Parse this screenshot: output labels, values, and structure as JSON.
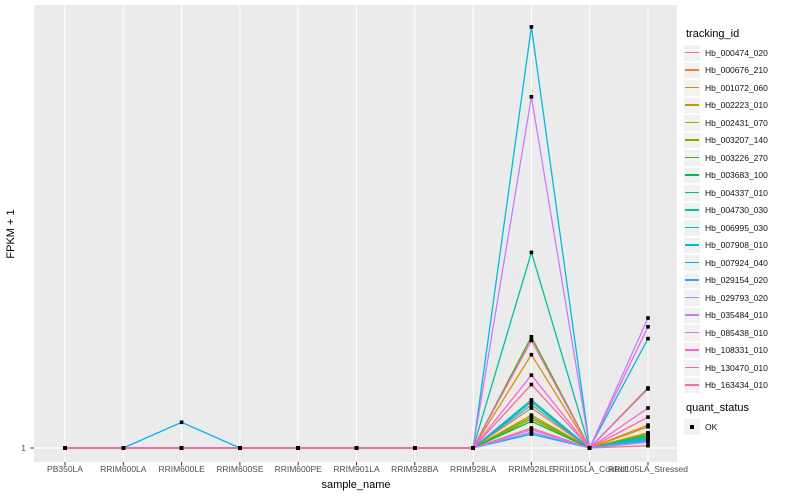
{
  "chart_data": {
    "type": "line",
    "title": "",
    "xlabel": "sample_name",
    "ylabel": "FPKM + 1",
    "categories": [
      "PB350LA",
      "RRIM600LA",
      "RRIM600LE",
      "RRIM600SE",
      "RRIM600PE",
      "RRIM901LA",
      "RRIM928BA",
      "RRIM928LA",
      "RRIM928LE",
      "RRII105LA_Control",
      "RRII105LA_Stressed"
    ],
    "y_axis": {
      "scale": "log10",
      "tick_labels": [
        "1"
      ],
      "tick_values": [
        1
      ],
      "approx_range": [
        1,
        334
      ]
    },
    "grid": {
      "vertical_major": true,
      "horizontal_major_at": [
        1
      ]
    },
    "legend": {
      "title": "tracking_id",
      "position": "right"
    },
    "legend2": {
      "title": "quant_status",
      "items": [
        {
          "label": "OK",
          "marker": "black-square"
        }
      ]
    },
    "series": [
      {
        "name": "Hb_000474_020",
        "color": "#F8766D",
        "values": [
          1,
          1,
          1,
          1,
          1,
          1,
          1,
          1,
          1.3,
          1,
          1.03
        ]
      },
      {
        "name": "Hb_000676_210",
        "color": "#EA8331",
        "values": [
          1,
          1,
          1,
          1,
          1,
          1,
          1,
          1,
          1.69,
          1,
          1.32
        ]
      },
      {
        "name": "Hb_001072_060",
        "color": "#D89000",
        "values": [
          1,
          1,
          1,
          1,
          1,
          1,
          1,
          1,
          3.4,
          1,
          1.35
        ]
      },
      {
        "name": "Hb_002223_010",
        "color": "#C09B00",
        "values": [
          1,
          1,
          1,
          1,
          1,
          1,
          1,
          1,
          1.54,
          1,
          1.19
        ]
      },
      {
        "name": "Hb_002431_070",
        "color": "#A3A500",
        "values": [
          1,
          1,
          1,
          1,
          1,
          1,
          1,
          1,
          1.46,
          1,
          1.22
        ]
      },
      {
        "name": "Hb_003207_140",
        "color": "#7CAE00",
        "values": [
          1,
          1,
          1,
          1,
          1,
          1,
          1,
          1,
          1.5,
          1,
          1.2
        ]
      },
      {
        "name": "Hb_003226_270",
        "color": "#39B600",
        "values": [
          1,
          1,
          1,
          1,
          1,
          1,
          1,
          1,
          4.3,
          1,
          2.2
        ]
      },
      {
        "name": "Hb_003683_100",
        "color": "#00BB4E",
        "values": [
          1,
          1,
          1,
          1,
          1,
          1,
          1,
          1,
          1.42,
          1,
          1.17
        ]
      },
      {
        "name": "Hb_004337_010",
        "color": "#00BF7D",
        "values": [
          1,
          1,
          1,
          1,
          1,
          1,
          1,
          1,
          1.83,
          1,
          1.14
        ]
      },
      {
        "name": "Hb_004730_030",
        "color": "#00C1A3",
        "values": [
          1,
          1,
          1,
          1,
          1,
          1,
          1,
          1,
          13.0,
          1,
          1.13
        ]
      },
      {
        "name": "Hb_006995_030",
        "color": "#00BFC4",
        "values": [
          1,
          1,
          1,
          1,
          1,
          1,
          1,
          1,
          1.88,
          1,
          1.16
        ]
      },
      {
        "name": "Hb_007908_010",
        "color": "#00BAE0",
        "values": [
          1,
          1,
          1,
          1,
          1,
          1,
          1,
          1,
          250,
          1,
          4.2
        ]
      },
      {
        "name": "Hb_007924_040",
        "color": "#00B0F6",
        "values": [
          1,
          1,
          1.4,
          1,
          1,
          1,
          1,
          1,
          1.2,
          1,
          1.1
        ]
      },
      {
        "name": "Hb_029154_020",
        "color": "#35A2FF",
        "values": [
          1,
          1,
          1,
          1,
          1,
          1,
          1,
          1,
          1.76,
          1,
          1.11
        ]
      },
      {
        "name": "Hb_029793_020",
        "color": "#9590FF",
        "values": [
          1,
          1,
          1,
          1,
          1,
          1,
          1,
          1,
          1.23,
          1,
          1.08
        ]
      },
      {
        "name": "Hb_035484_010",
        "color": "#C77CFF",
        "values": [
          1,
          1,
          1,
          1,
          1,
          1,
          1,
          1,
          100,
          1,
          5.5
        ]
      },
      {
        "name": "Hb_085438_010",
        "color": "#E76BF3",
        "values": [
          1,
          1,
          1,
          1,
          1,
          1,
          1,
          1,
          1.27,
          1,
          4.9
        ]
      },
      {
        "name": "Hb_108331_010",
        "color": "#FA62DB",
        "values": [
          1,
          1,
          1,
          1,
          1,
          1,
          1,
          1,
          2.6,
          1,
          1.69
        ]
      },
      {
        "name": "Hb_130470_010",
        "color": "#FF62BC",
        "values": [
          1,
          1,
          1,
          1,
          1,
          1,
          1,
          1,
          4.1,
          1,
          2.17
        ]
      },
      {
        "name": "Hb_163434_010",
        "color": "#FF6A98",
        "values": [
          1,
          1,
          1,
          1,
          1,
          1,
          1,
          1,
          2.3,
          1,
          1.5
        ]
      }
    ],
    "colors": {
      "panel_bg": "#EBEBEB",
      "gridline": "#FFFFFF",
      "point": "#000000",
      "tick_mark": "#333333",
      "tick_text": "#4D4D4D",
      "axis_title_text": "#000000",
      "legend_key_bg": "#F2F2F2"
    }
  }
}
